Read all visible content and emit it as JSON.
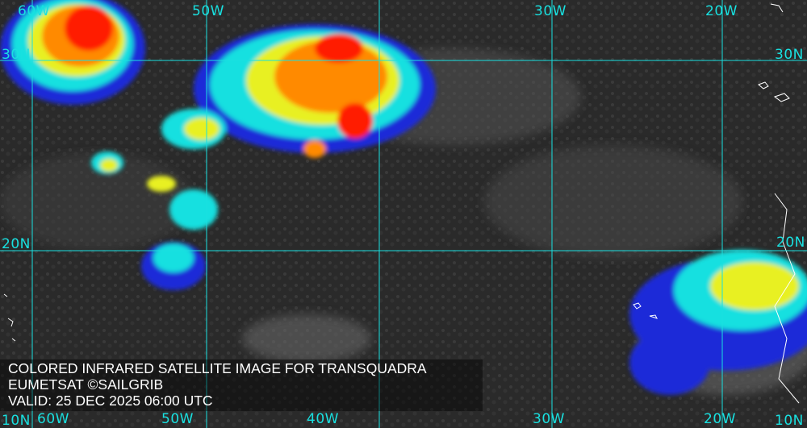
{
  "caption": {
    "title": "COLORED INFRARED SATELLITE IMAGE FOR TRANSQUADRA",
    "credit": "EUMETSAT ©SAILGRIB",
    "valid": "VALID:  25 DEC 2025 06:00 UTC"
  },
  "grid": {
    "color": "#19e0e0",
    "longitudes_top": [
      "60W",
      "50W",
      "30W",
      "20W"
    ],
    "longitudes_bottom": [
      "60W",
      "50W",
      "40W",
      "30W",
      "20W"
    ],
    "latitudes_left": [
      "30N",
      "20N",
      "10N"
    ],
    "latitudes_right": [
      "30N",
      "20N",
      "10N"
    ]
  },
  "colorscale": [
    "#1a2bd8",
    "#19e0e0",
    "#e8f020",
    "#ff8a00",
    "#ff1a00"
  ]
}
